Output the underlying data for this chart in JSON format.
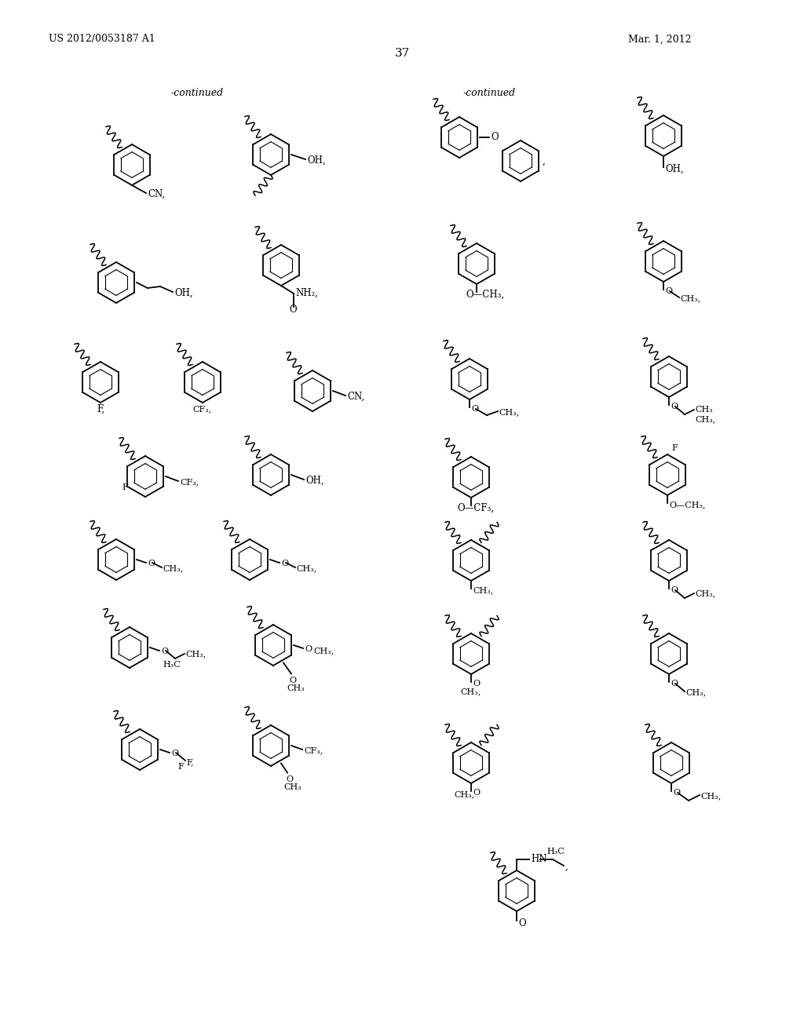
{
  "header_left": "US 2012/0053187 A1",
  "header_right": "Mar. 1, 2012",
  "page_num": "37",
  "continued_left": "-continued",
  "continued_right": "-continued",
  "bg": "#ffffff"
}
